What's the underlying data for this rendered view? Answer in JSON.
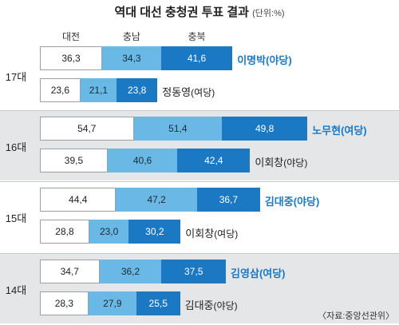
{
  "title": "역대 대선 충청권 투표 결과",
  "unit": "(단위:%)",
  "source": "〈자료:중앙선관위〉",
  "colors": {
    "daejeon": "#ffffff",
    "chungnam": "#6ab8e6",
    "chungbuk": "#1a79c2",
    "winner_text": "#1a79c2",
    "band_gray": "#e4e6e8"
  },
  "chart_data": {
    "type": "bar",
    "stacked": true,
    "orientation": "horizontal",
    "legend": [
      "대전",
      "충남",
      "충북"
    ],
    "elections": [
      {
        "label": "17대",
        "rows": [
          {
            "candidate": "이명박",
            "party": "(야당)",
            "winner": true,
            "values": [
              "36,3",
              "34,3",
              "41,6"
            ],
            "numeric": [
              36.3,
              34.3,
              41.6
            ]
          },
          {
            "candidate": "정동영",
            "party": "(여당)",
            "winner": false,
            "values": [
              "23,6",
              "21,1",
              "23,8"
            ],
            "numeric": [
              23.6,
              21.1,
              23.8
            ]
          }
        ]
      },
      {
        "label": "16대",
        "rows": [
          {
            "candidate": "노무현",
            "party": "(여당)",
            "winner": true,
            "values": [
              "54,7",
              "51,4",
              "49,8"
            ],
            "numeric": [
              54.7,
              51.4,
              49.8
            ]
          },
          {
            "candidate": "이회창",
            "party": "(야당)",
            "winner": false,
            "values": [
              "39,5",
              "40,6",
              "42,4"
            ],
            "numeric": [
              39.5,
              40.6,
              42.4
            ]
          }
        ]
      },
      {
        "label": "15대",
        "rows": [
          {
            "candidate": "김대중",
            "party": "(야당)",
            "winner": true,
            "values": [
              "44,4",
              "47,2",
              "36,7"
            ],
            "numeric": [
              44.4,
              47.2,
              36.7
            ]
          },
          {
            "candidate": "이회창",
            "party": "(여당)",
            "winner": false,
            "values": [
              "28,8",
              "23,0",
              "30,2"
            ],
            "numeric": [
              28.8,
              23.0,
              30.2
            ]
          }
        ]
      },
      {
        "label": "14대",
        "rows": [
          {
            "candidate": "김영삼",
            "party": "(여당)",
            "winner": true,
            "values": [
              "34,7",
              "36,2",
              "37,5"
            ],
            "numeric": [
              34.7,
              36.2,
              37.5
            ]
          },
          {
            "candidate": "김대중",
            "party": "(야당)",
            "winner": false,
            "values": [
              "28,3",
              "27,9",
              "25,5"
            ],
            "numeric": [
              28.3,
              27.9,
              25.5
            ]
          }
        ]
      }
    ]
  }
}
